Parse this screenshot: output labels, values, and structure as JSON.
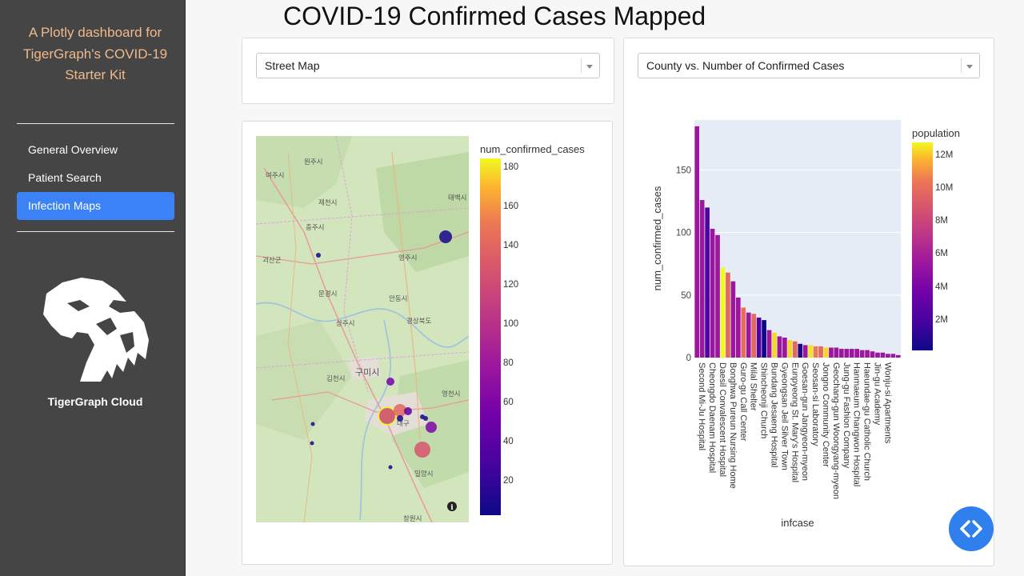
{
  "sidebar": {
    "title": "A Plotly dashboard for TigerGraph's COVID-19 Starter Kit",
    "nav": [
      {
        "label": "General Overview",
        "active": false
      },
      {
        "label": "Patient Search",
        "active": false
      },
      {
        "label": "Infection Maps",
        "active": true
      }
    ],
    "logo_icon": "tiger-head-icon",
    "logo_caption": "TigerGraph Cloud"
  },
  "page_title": "COVID-19 Confirmed Cases Mapped",
  "map_panel": {
    "dropdown_value": "Street Map",
    "colorbar_title": "num_confirmed_cases",
    "colorbar_ticks": [
      20,
      40,
      60,
      80,
      100,
      120,
      140,
      160,
      180
    ],
    "colorbar_range": [
      3,
      185
    ],
    "place_labels": [
      "여주시",
      "원주시",
      "제천시",
      "태백시",
      "충주시",
      "영주시",
      "괴산군",
      "문경시",
      "안동시",
      "상주시",
      "경상북도",
      "구미시",
      "김천시",
      "영천시",
      "대구",
      "밀양시",
      "창원시"
    ],
    "info_icon": "info-icon"
  },
  "chart_panel": {
    "dropdown_value": "County vs. Number of Confirmed Cases",
    "colors": {
      "plot_bg": "#e5ecf6",
      "gridline": "#ffffff"
    }
  },
  "chart_data": {
    "type": "bar",
    "xlabel": "infcase",
    "ylabel": "num_confirmed_cases",
    "ylim": [
      0,
      190
    ],
    "yticks": [
      0,
      50,
      100,
      150
    ],
    "color_by": "population",
    "color_range_millions": [
      0.2,
      12.8
    ],
    "colorbar_title": "population",
    "colorbar_ticks": [
      "2M",
      "4M",
      "6M",
      "8M",
      "10M",
      "12M"
    ],
    "category_labels_shown": [
      "Second Mi-Ju Hospital",
      "Cheongdo Daenam Hospital",
      "Daesil Convalescent Hospital",
      "Bonghwa Pureun Nursing Home",
      "Guro-gu Call Center",
      "Milal Shelter",
      "Shincheonji Church",
      "Bundang Jesaeng Hospital",
      "Gyeongsan Jeil Silver Town",
      "Eunpyeong St. Mary's Hospital",
      "Goesan-gun Jangyeon-myeon",
      "Seosan-si Laboratory",
      "Jongno Community Center",
      "Geochang-gun Woongyang-myeon",
      "Jung-gu Fashion Company",
      "Hanmaeum Changwon Hospital",
      "Haeundae-gu Catholic Church",
      "Jin-gu Academy",
      "Wonju-si Apartments"
    ],
    "values": [
      185,
      126,
      120,
      103,
      98,
      72,
      68,
      61,
      48,
      40,
      36,
      35,
      32,
      30,
      22,
      20,
      17,
      16,
      14,
      13,
      11,
      10,
      10,
      9,
      9,
      8,
      8,
      8,
      7,
      7,
      7,
      7,
      6,
      6,
      5,
      4,
      4,
      3,
      3,
      2
    ],
    "population_millions": [
      5.5,
      5.5,
      2.4,
      5.5,
      5.5,
      12.8,
      9.8,
      5.5,
      5.5,
      10.1,
      5.5,
      9.8,
      2.4,
      0.2,
      5.5,
      12.3,
      5.5,
      5.5,
      12.3,
      9.8,
      0.8,
      5.5,
      12.5,
      10.5,
      9.8,
      12.3,
      5.5,
      5.5,
      5.5,
      5.5,
      5.5,
      5.5,
      5.5,
      5.5,
      5.5,
      5.5,
      5.5,
      5.5,
      5.5,
      5.5
    ]
  }
}
